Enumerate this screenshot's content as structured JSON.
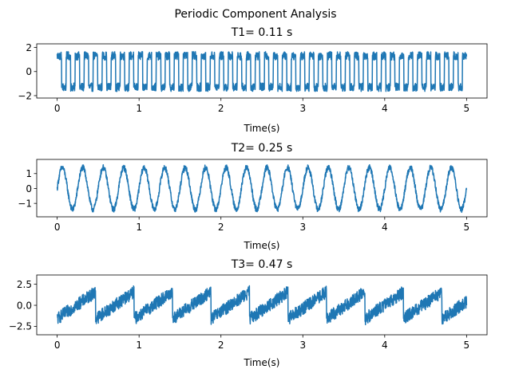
{
  "figure": {
    "suptitle": "Periodic Component Analysis"
  },
  "chart_data": [
    {
      "type": "line",
      "title": "T1= 0.11 s",
      "xlabel": "Time(s)",
      "ylabel": "",
      "xlim": [
        -0.25,
        5.25
      ],
      "ylim": [
        -2.2,
        2.3
      ],
      "xticks": [
        0,
        1,
        2,
        3,
        4,
        5
      ],
      "yticks": [
        -2,
        0,
        2
      ],
      "ytick_labels": [
        "−2",
        "0",
        "2"
      ],
      "grid": false,
      "waveform": "square",
      "period": 0.11,
      "amplitude": 1.3,
      "noise_amplitude": 0.35,
      "x_range": [
        0,
        5
      ],
      "color": "#1f77b4"
    },
    {
      "type": "line",
      "title": "T2= 0.25 s",
      "xlabel": "Time(s)",
      "ylabel": "",
      "xlim": [
        -0.25,
        5.25
      ],
      "ylim": [
        -1.9,
        1.95
      ],
      "xticks": [
        0,
        1,
        2,
        3,
        4,
        5
      ],
      "yticks": [
        -1,
        0,
        1
      ],
      "ytick_labels": [
        "−1",
        "0",
        "1"
      ],
      "grid": false,
      "waveform": "sine",
      "period": 0.25,
      "amplitude": 1.4,
      "noise_amplitude": 0.2,
      "x_range": [
        0,
        5
      ],
      "color": "#1f77b4"
    },
    {
      "type": "line",
      "title": "T3= 0.47 s",
      "xlabel": "Time(s)",
      "ylabel": "",
      "xlim": [
        -0.25,
        5.25
      ],
      "ylim": [
        -3.5,
        3.6
      ],
      "xticks": [
        0,
        1,
        2,
        3,
        4,
        5
      ],
      "yticks": [
        -2.5,
        0.0,
        2.5
      ],
      "ytick_labels": [
        "−2.5",
        "0.0",
        "2.5"
      ],
      "grid": false,
      "waveform": "sawtooth",
      "period": 0.47,
      "amplitude": 1.6,
      "noise_amplitude": 0.75,
      "x_range": [
        0,
        5
      ],
      "color": "#1f77b4"
    }
  ]
}
